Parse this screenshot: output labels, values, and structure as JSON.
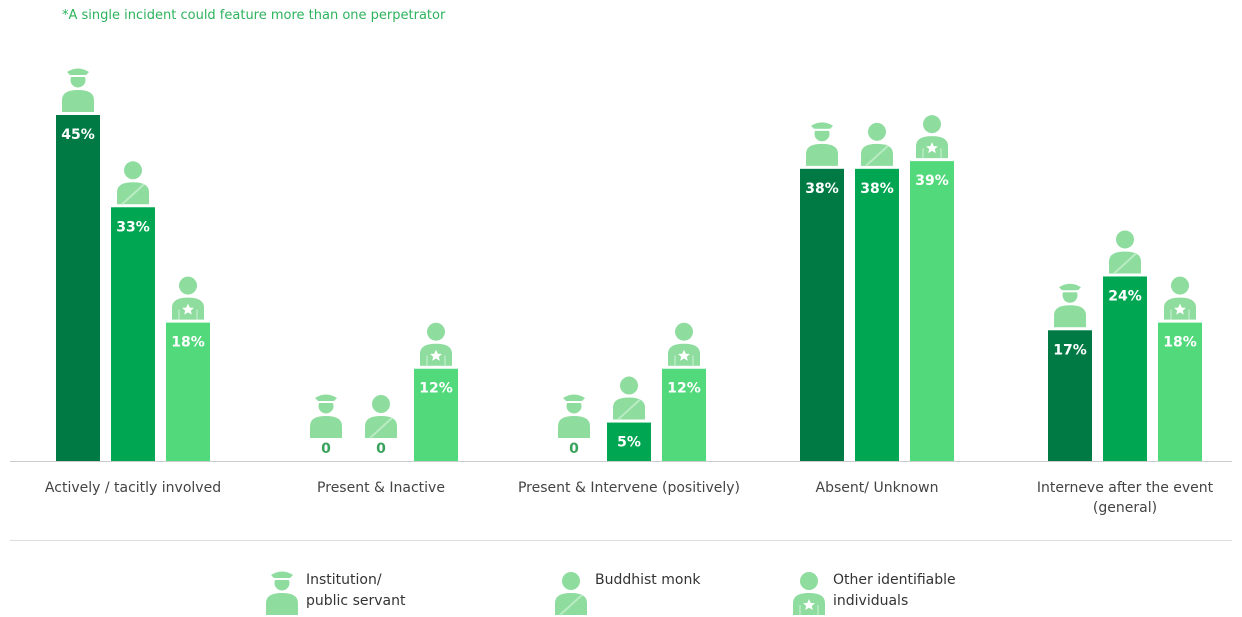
{
  "chart_data": {
    "type": "bar",
    "note": "*A single incident could feature more than one perpetrator",
    "categories": [
      "Actively / tacitly involved",
      "Present & Inactive",
      "Present & Intervene (positively)",
      "Absent/ Unknown",
      "Interneve after the event (general)"
    ],
    "series": [
      {
        "name": "Institution/ public servant",
        "color": "#007a45",
        "values": [
          45,
          0,
          0,
          38,
          17
        ],
        "value_labels": [
          "45%",
          "0",
          "0",
          "38%",
          "17%"
        ]
      },
      {
        "name": "Buddhist monk",
        "color": "#00a651",
        "values": [
          33,
          0,
          5,
          38,
          24
        ],
        "value_labels": [
          "33%",
          "0",
          "5%",
          "38%",
          "24%"
        ]
      },
      {
        "name": "Other identifiable individuals",
        "color": "#52d97b",
        "values": [
          18,
          12,
          12,
          39,
          18
        ],
        "value_labels": [
          "18%",
          "12%",
          "12%",
          "39%",
          "18%"
        ]
      }
    ],
    "ylim": [
      0,
      45
    ]
  }
}
